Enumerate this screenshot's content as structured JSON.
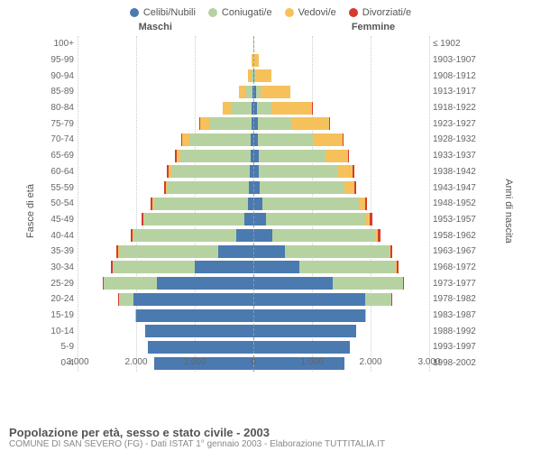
{
  "type": "population-pyramid",
  "title": "Popolazione per età, sesso e stato civile - 2003",
  "subtitle": "COMUNE DI SAN SEVERO (FG) - Dati ISTAT 1° gennaio 2003 - Elaborazione TUTTITALIA.IT",
  "left_header": "Maschi",
  "right_header": "Femmine",
  "y_title_left": "Fasce di età",
  "y_title_right": "Anni di nascita",
  "x_max": 3000,
  "x_ticks": [
    3000,
    2000,
    1000,
    0,
    1000,
    2000,
    3000
  ],
  "x_tick_labels": [
    "3.000",
    "2.000",
    "1.000",
    "0",
    "1.000",
    "2.000",
    "3.000"
  ],
  "colors": {
    "celibi": "#4a7ab0",
    "coniugati": "#b7d2a1",
    "vedovi": "#f6c15a",
    "divorziati": "#d63a2f",
    "grid": "#cccccc",
    "axis": "#999999",
    "text": "#666666",
    "bg": "#ffffff"
  },
  "legend": [
    {
      "label": "Celibi/Nubili",
      "key": "celibi"
    },
    {
      "label": "Coniugati/e",
      "key": "coniugati"
    },
    {
      "label": "Vedovi/e",
      "key": "vedovi"
    },
    {
      "label": "Divorziati/e",
      "key": "divorziati"
    }
  ],
  "rows": [
    {
      "age": "100+",
      "birth": "≤ 1902",
      "m": [
        0,
        0,
        5,
        0
      ],
      "f": [
        0,
        0,
        15,
        0
      ]
    },
    {
      "age": "95-99",
      "birth": "1903-1907",
      "m": [
        0,
        5,
        20,
        0
      ],
      "f": [
        5,
        5,
        85,
        0
      ]
    },
    {
      "age": "90-94",
      "birth": "1908-1912",
      "m": 5,
      "mv": [
        5,
        30,
        55,
        0
      ],
      "f": [
        20,
        25,
        270,
        0
      ]
    },
    {
      "age": "85-89",
      "birth": "1913-1917",
      "m": [
        15,
        120,
        110,
        0
      ],
      "f": [
        40,
        85,
        500,
        0
      ]
    },
    {
      "age": "80-84",
      "birth": "1918-1922",
      "m": [
        25,
        360,
        140,
        5
      ],
      "f": [
        60,
        250,
        690,
        5
      ]
    },
    {
      "age": "75-79",
      "birth": "1923-1927",
      "m": [
        30,
        730,
        150,
        10
      ],
      "f": [
        70,
        580,
        650,
        10
      ]
    },
    {
      "age": "70-74",
      "birth": "1928-1932",
      "m": [
        40,
        1050,
        120,
        15
      ],
      "f": [
        80,
        930,
        520,
        15
      ]
    },
    {
      "age": "65-69",
      "birth": "1933-1937",
      "m": [
        45,
        1200,
        70,
        20
      ],
      "f": [
        85,
        1150,
        380,
        20
      ]
    },
    {
      "age": "60-64",
      "birth": "1938-1942",
      "m": [
        55,
        1350,
        45,
        25
      ],
      "f": [
        95,
        1350,
        250,
        25
      ]
    },
    {
      "age": "55-59",
      "birth": "1943-1947",
      "m": [
        70,
        1400,
        30,
        30
      ],
      "f": [
        110,
        1450,
        160,
        30
      ]
    },
    {
      "age": "50-54",
      "birth": "1948-1952",
      "m": [
        100,
        1600,
        20,
        35
      ],
      "f": [
        150,
        1650,
        100,
        35
      ]
    },
    {
      "age": "45-49",
      "birth": "1953-1957",
      "m": [
        160,
        1700,
        15,
        40
      ],
      "f": [
        210,
        1720,
        60,
        40
      ]
    },
    {
      "age": "40-44",
      "birth": "1958-1962",
      "m": [
        300,
        1750,
        10,
        40
      ],
      "f": [
        330,
        1760,
        35,
        40
      ]
    },
    {
      "age": "35-39",
      "birth": "1963-1967",
      "m": [
        600,
        1700,
        5,
        35
      ],
      "f": [
        540,
        1780,
        20,
        35
      ]
    },
    {
      "age": "30-34",
      "birth": "1968-1972",
      "m": [
        1000,
        1400,
        5,
        30
      ],
      "f": [
        780,
        1650,
        10,
        30
      ]
    },
    {
      "age": "25-29",
      "birth": "1973-1977",
      "m": [
        1650,
        900,
        0,
        20
      ],
      "f": [
        1350,
        1200,
        5,
        20
      ]
    },
    {
      "age": "20-24",
      "birth": "1978-1982",
      "m": [
        2050,
        250,
        0,
        5
      ],
      "f": [
        1900,
        450,
        0,
        5
      ]
    },
    {
      "age": "15-19",
      "birth": "1983-1987",
      "m": [
        2000,
        10,
        0,
        0
      ],
      "f": [
        1900,
        30,
        0,
        0
      ]
    },
    {
      "age": "10-14",
      "birth": "1988-1992",
      "m": [
        1850,
        0,
        0,
        0
      ],
      "f": [
        1750,
        0,
        0,
        0
      ]
    },
    {
      "age": "5-9",
      "birth": "1993-1997",
      "m": [
        1800,
        0,
        0,
        0
      ],
      "f": [
        1650,
        0,
        0,
        0
      ]
    },
    {
      "age": "0-4",
      "birth": "1998-2002",
      "m": [
        1700,
        0,
        0,
        0
      ],
      "f": [
        1550,
        0,
        0,
        0
      ]
    }
  ]
}
